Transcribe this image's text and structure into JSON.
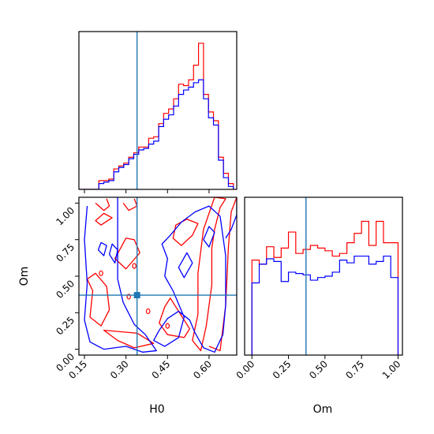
{
  "colors": {
    "series_1": "#ff0000",
    "series_2": "#0000ff",
    "truth": "#1f77b4"
  },
  "chart_data": [
    {
      "type": "histogram",
      "panel": "H0 marginal (top-left)",
      "xlim": [
        0.13,
        0.7
      ],
      "x_ticks": [
        "0.15",
        "0.30",
        "0.45",
        "0.60"
      ],
      "truth": 0.34,
      "bin_edges": [
        0.13,
        0.148,
        0.166,
        0.184,
        0.202,
        0.22,
        0.238,
        0.256,
        0.274,
        0.292,
        0.31,
        0.328,
        0.346,
        0.364,
        0.382,
        0.4,
        0.418,
        0.436,
        0.454,
        0.472,
        0.49,
        0.508,
        0.526,
        0.544,
        0.562,
        0.58,
        0.598,
        0.616,
        0.634,
        0.652,
        0.67,
        0.688
      ],
      "series": [
        {
          "color": "red",
          "values": [
            0.0,
            0.0,
            0.0,
            0.0,
            0.06,
            0.06,
            0.07,
            0.14,
            0.16,
            0.18,
            0.22,
            0.25,
            0.29,
            0.29,
            0.35,
            0.36,
            0.45,
            0.52,
            0.55,
            0.62,
            0.72,
            0.71,
            0.75,
            0.85,
            1.0,
            0.65,
            0.53,
            0.47,
            0.22,
            0.11,
            0.04
          ]
        },
        {
          "color": "blue",
          "values": [
            0.0,
            0.0,
            0.0,
            0.0,
            0.04,
            0.05,
            0.06,
            0.12,
            0.15,
            0.17,
            0.21,
            0.24,
            0.27,
            0.28,
            0.31,
            0.33,
            0.43,
            0.48,
            0.51,
            0.57,
            0.65,
            0.68,
            0.7,
            0.73,
            0.75,
            0.62,
            0.49,
            0.44,
            0.2,
            0.08,
            0.02
          ]
        }
      ]
    },
    {
      "type": "contour",
      "panel": "H0 vs Om (bottom-left)",
      "xlabel": "H0",
      "ylabel": "Om",
      "xlim": [
        0.13,
        0.7
      ],
      "ylim": [
        -0.04,
        1.04
      ],
      "x_ticks": [
        "0.15",
        "0.30",
        "0.45",
        "0.60"
      ],
      "y_ticks": [
        "0.00",
        "0.25",
        "0.50",
        "0.75",
        "1.00"
      ],
      "truth": {
        "x": 0.34,
        "y": 0.37
      },
      "series": [
        {
          "color": "red",
          "contours": [
            [
              [
                0.19,
                1.0
              ],
              [
                0.22,
                0.95
              ],
              [
                0.24,
                0.98
              ],
              [
                0.23,
                1.03
              ]
            ],
            [
              [
                0.19,
                0.88
              ],
              [
                0.21,
                0.85
              ],
              [
                0.25,
                0.9
              ],
              [
                0.22,
                0.93
              ]
            ],
            [
              [
                0.29,
                1.0
              ],
              [
                0.31,
                0.95
              ],
              [
                0.34,
                0.98
              ],
              [
                0.33,
                1.03
              ]
            ],
            [
              [
                0.16,
                0.48
              ],
              [
                0.18,
                0.4
              ],
              [
                0.17,
                0.22
              ],
              [
                0.21,
                0.16
              ],
              [
                0.24,
                0.27
              ],
              [
                0.23,
                0.43
              ],
              [
                0.19,
                0.52
              ]
            ],
            [
              [
                0.26,
                0.62
              ],
              [
                0.3,
                0.55
              ],
              [
                0.35,
                0.66
              ],
              [
                0.33,
                0.75
              ],
              [
                0.3,
                0.76
              ]
            ],
            [
              [
                0.22,
                0.13
              ],
              [
                0.27,
                0.06
              ],
              [
                0.33,
                0.01
              ],
              [
                0.4,
                0.04
              ],
              [
                0.34,
                0.11
              ]
            ],
            [
              [
                0.42,
                0.18
              ],
              [
                0.45,
                0.1
              ],
              [
                0.51,
                0.08
              ],
              [
                0.53,
                0.14
              ],
              [
                0.49,
                0.26
              ],
              [
                0.46,
                0.35
              ],
              [
                0.44,
                0.29
              ]
            ],
            [
              [
                0.47,
                0.76
              ],
              [
                0.5,
                0.71
              ],
              [
                0.54,
                0.78
              ],
              [
                0.56,
                0.86
              ],
              [
                0.52,
                0.89
              ],
              [
                0.48,
                0.85
              ]
            ],
            [
              [
                0.54,
                0.06
              ],
              [
                0.57,
                -0.01
              ],
              [
                0.59,
                0.16
              ],
              [
                0.61,
                0.44
              ],
              [
                0.61,
                0.69
              ],
              [
                0.62,
                0.82
              ],
              [
                0.64,
                0.97
              ],
              [
                0.66,
                1.03
              ],
              [
                0.62,
                1.04
              ],
              [
                0.58,
                0.82
              ],
              [
                0.56,
                0.52
              ],
              [
                0.56,
                0.24
              ]
            ],
            [
              [
                0.6,
                0.02
              ],
              [
                0.64,
                -0.01
              ],
              [
                0.66,
                0.3
              ],
              [
                0.67,
                0.7
              ],
              [
                0.68,
                0.94
              ],
              [
                0.7,
                1.04
              ]
            ]
          ]
        },
        {
          "color": "blue",
          "contours": [
            [
              [
                0.16,
                0.98
              ],
              [
                0.15,
                0.75
              ],
              [
                0.16,
                0.45
              ],
              [
                0.15,
                0.2
              ],
              [
                0.17,
                0.05
              ],
              [
                0.22,
                0.0
              ],
              [
                0.3,
                0.02
              ],
              [
                0.36,
                -0.02
              ],
              [
                0.41,
                -0.01
              ],
              [
                0.37,
                0.1
              ],
              [
                0.33,
                0.17
              ],
              [
                0.29,
                0.32
              ],
              [
                0.27,
                0.48
              ],
              [
                0.27,
                0.72
              ],
              [
                0.27,
                0.92
              ],
              [
                0.27,
                1.04
              ]
            ],
            [
              [
                0.24,
                0.65
              ],
              [
                0.26,
                0.59
              ],
              [
                0.27,
                0.68
              ],
              [
                0.25,
                0.72
              ]
            ],
            [
              [
                0.2,
                0.68
              ],
              [
                0.22,
                0.64
              ],
              [
                0.23,
                0.71
              ],
              [
                0.21,
                0.73
              ]
            ],
            [
              [
                0.4,
                0.06
              ],
              [
                0.44,
                0.02
              ],
              [
                0.49,
                0.08
              ],
              [
                0.51,
                0.22
              ],
              [
                0.47,
                0.4
              ],
              [
                0.44,
                0.5
              ],
              [
                0.45,
                0.62
              ],
              [
                0.43,
                0.72
              ],
              [
                0.46,
                0.78
              ],
              [
                0.5,
                0.87
              ],
              [
                0.55,
                0.94
              ],
              [
                0.6,
                0.98
              ],
              [
                0.64,
                0.91
              ],
              [
                0.66,
                0.64
              ],
              [
                0.66,
                0.3
              ],
              [
                0.65,
                0.1
              ],
              [
                0.62,
                -0.02
              ],
              [
                0.58,
                0.01
              ],
              [
                0.55,
                0.11
              ],
              [
                0.53,
                0.2
              ],
              [
                0.49,
                0.26
              ],
              [
                0.45,
                0.21
              ],
              [
                0.42,
                0.13
              ]
            ],
            [
              [
                0.49,
                0.56
              ],
              [
                0.51,
                0.49
              ],
              [
                0.54,
                0.59
              ],
              [
                0.52,
                0.66
              ]
            ],
            [
              [
                0.58,
                0.75
              ],
              [
                0.6,
                0.7
              ],
              [
                0.62,
                0.8
              ],
              [
                0.6,
                0.84
              ]
            ],
            [
              [
                0.66,
                0.76
              ],
              [
                0.68,
                0.82
              ],
              [
                0.7,
                0.92
              ],
              [
                0.7,
                1.04
              ]
            ]
          ]
        }
      ],
      "spots": [
        {
          "color": "red",
          "points": [
            [
              0.21,
              0.52
            ],
            [
              0.33,
              0.57
            ],
            [
              0.31,
              0.36
            ],
            [
              0.38,
              0.26
            ],
            [
              0.45,
              0.16
            ]
          ]
        }
      ]
    },
    {
      "type": "histogram",
      "panel": "Om marginal (bottom-right)",
      "xlabel": "Om",
      "xlim": [
        -0.05,
        1.03
      ],
      "x_ticks": [
        "0.00",
        "0.25",
        "0.50",
        "0.75",
        "1.00"
      ],
      "truth": 0.37,
      "bin_edges": [
        0.0,
        0.05,
        0.1,
        0.15,
        0.2,
        0.25,
        0.3,
        0.35,
        0.4,
        0.45,
        0.5,
        0.55,
        0.6,
        0.65,
        0.7,
        0.75,
        0.8,
        0.85,
        0.9,
        0.95,
        1.0
      ],
      "series": [
        {
          "color": "red",
          "values": [
            0.71,
            0.68,
            0.81,
            0.73,
            0.8,
            0.92,
            0.76,
            0.79,
            0.82,
            0.8,
            0.78,
            0.74,
            0.76,
            0.84,
            0.91,
            1.0,
            0.82,
            1.0,
            0.84,
            0.84
          ]
        },
        {
          "color": "blue",
          "values": [
            0.54,
            0.68,
            0.72,
            0.7,
            0.55,
            0.62,
            0.61,
            0.6,
            0.56,
            0.58,
            0.59,
            0.62,
            0.71,
            0.69,
            0.74,
            0.74,
            0.68,
            0.7,
            0.74,
            0.58
          ]
        }
      ]
    }
  ]
}
